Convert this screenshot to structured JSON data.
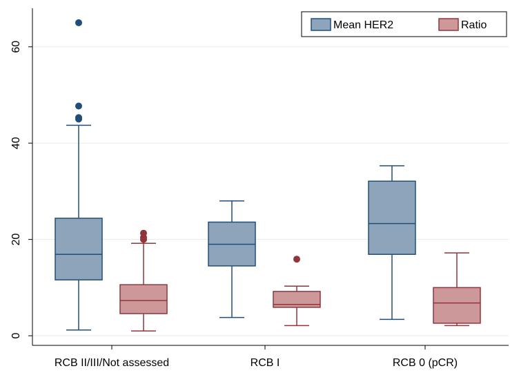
{
  "chart_data": {
    "type": "box",
    "categories": [
      "RCB II/III/Not assessed",
      "RCB I",
      "RCB 0 (pCR)"
    ],
    "yticks": [
      0,
      20,
      40,
      60
    ],
    "ylim": [
      -2,
      68
    ],
    "grid": true,
    "legend_position": "top-right",
    "series": [
      {
        "name": "Mean HER2",
        "fill": "#8ea4ba",
        "stroke": "#1f4e79",
        "boxes": [
          {
            "whisker_low": 1.2,
            "q1": 11.6,
            "median": 16.9,
            "q3": 24.4,
            "whisker_high": 43.7,
            "outliers": [
              45.0,
              45.3,
              47.7,
              65.0
            ]
          },
          {
            "whisker_low": 3.8,
            "q1": 14.5,
            "median": 19.0,
            "q3": 23.6,
            "whisker_high": 28.0,
            "outliers": []
          },
          {
            "whisker_low": 3.4,
            "q1": 16.9,
            "median": 23.3,
            "q3": 32.1,
            "whisker_high": 35.3,
            "outliers": []
          }
        ]
      },
      {
        "name": "Ratio",
        "fill": "#cd989a",
        "stroke": "#90353b",
        "boxes": [
          {
            "whisker_low": 1.0,
            "q1": 4.6,
            "median": 7.3,
            "q3": 10.6,
            "whisker_high": 19.2,
            "outliers": [
              20.0,
              20.4,
              21.3
            ]
          },
          {
            "whisker_low": 2.1,
            "q1": 5.9,
            "median": 6.5,
            "q3": 9.2,
            "whisker_high": 10.3,
            "outliers": [
              15.9
            ]
          },
          {
            "whisker_low": 2.1,
            "q1": 2.6,
            "median": 6.8,
            "q3": 10.0,
            "whisker_high": 17.2,
            "outliers": []
          }
        ]
      }
    ]
  }
}
